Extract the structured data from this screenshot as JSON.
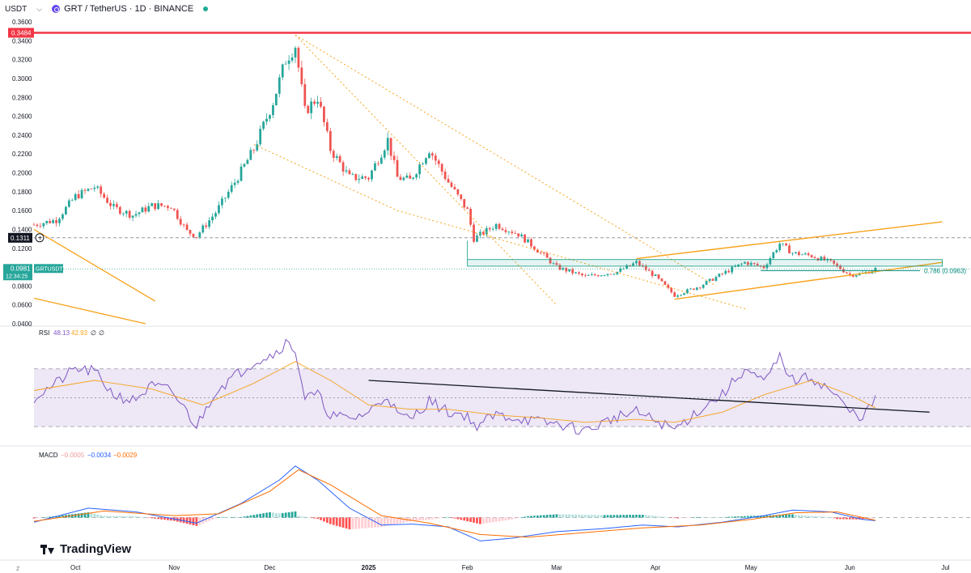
{
  "header": {
    "unit": "USDT",
    "symbol_text": "GRT / TetherUS · 1D · BINANCE"
  },
  "branding": {
    "text": "TradingView"
  },
  "corner_label": "Z",
  "chart_data": [
    {
      "type": "candlestick",
      "name": "GRTUSDT",
      "y_ticks": [
        "0.0400",
        "0.0600",
        "0.0800",
        "0.1000",
        "0.1200",
        "0.1400",
        "0.1600",
        "0.1800",
        "0.2000",
        "0.2200",
        "0.2400",
        "0.2600",
        "0.2800",
        "0.3000",
        "0.3200",
        "0.3400",
        "0.3600"
      ],
      "ylim": [
        0.04,
        0.36
      ],
      "x_ticks": [
        "Oct",
        "Nov",
        "Dec",
        "2025",
        "Feb",
        "Mar",
        "Apr",
        "May",
        "Jun",
        "Jul"
      ],
      "x_tick_dates": [
        "2024-10-01",
        "2024-11-01",
        "2024-12-01",
        "2025-01-01",
        "2025-02-01",
        "2025-03-01",
        "2025-04-01",
        "2025-05-01",
        "2025-06-01",
        "2025-07-01"
      ],
      "x_range": [
        "2024-09-18",
        "2025-07-09"
      ],
      "current_price": "0.0981",
      "current_price_label": "GRTUSDT",
      "countdown": "12:34:25",
      "price_line_value": 0.0981,
      "resistance_value": 0.3484,
      "resistance_label": "0.3484",
      "dashed_level_value": 0.1311,
      "dashed_level_label": "0.1311",
      "fib_label": "0.786 (0.0963)",
      "fib_value": 0.0963,
      "colors": {
        "up": "#26a69a",
        "down": "#ef5350",
        "resistance": "#f23645",
        "trend": "#f7a21b",
        "zone": "#089981"
      },
      "close_points": [
        [
          "2024-09-18",
          0.145
        ],
        [
          "2024-09-25",
          0.15
        ],
        [
          "2024-10-01",
          0.175
        ],
        [
          "2024-10-07",
          0.185
        ],
        [
          "2024-10-13",
          0.163
        ],
        [
          "2024-10-19",
          0.155
        ],
        [
          "2024-10-25",
          0.165
        ],
        [
          "2024-10-31",
          0.165
        ],
        [
          "2024-11-05",
          0.138
        ],
        [
          "2024-11-08",
          0.133
        ],
        [
          "2024-11-14",
          0.158
        ],
        [
          "2024-11-20",
          0.19
        ],
        [
          "2024-11-26",
          0.225
        ],
        [
          "2024-12-02",
          0.275
        ],
        [
          "2024-12-06",
          0.32
        ],
        [
          "2024-12-09",
          0.335
        ],
        [
          "2024-12-12",
          0.265
        ],
        [
          "2024-12-16",
          0.28
        ],
        [
          "2024-12-20",
          0.225
        ],
        [
          "2024-12-26",
          0.195
        ],
        [
          "2025-01-01",
          0.195
        ],
        [
          "2025-01-07",
          0.235
        ],
        [
          "2025-01-10",
          0.195
        ],
        [
          "2025-01-14",
          0.192
        ],
        [
          "2025-01-20",
          0.225
        ],
        [
          "2025-01-26",
          0.19
        ],
        [
          "2025-02-01",
          0.16
        ],
        [
          "2025-02-03",
          0.13
        ],
        [
          "2025-02-10",
          0.145
        ],
        [
          "2025-02-17",
          0.135
        ],
        [
          "2025-02-24",
          0.115
        ],
        [
          "2025-03-01",
          0.1
        ],
        [
          "2025-03-10",
          0.09
        ],
        [
          "2025-03-20",
          0.095
        ],
        [
          "2025-03-26",
          0.105
        ],
        [
          "2025-04-01",
          0.09
        ],
        [
          "2025-04-07",
          0.07
        ],
        [
          "2025-04-15",
          0.08
        ],
        [
          "2025-04-22",
          0.093
        ],
        [
          "2025-04-29",
          0.105
        ],
        [
          "2025-05-05",
          0.1
        ],
        [
          "2025-05-10",
          0.125
        ],
        [
          "2025-05-14",
          0.115
        ],
        [
          "2025-05-20",
          0.112
        ],
        [
          "2025-05-26",
          0.105
        ],
        [
          "2025-06-01",
          0.092
        ],
        [
          "2025-06-05",
          0.093
        ],
        [
          "2025-06-09",
          0.098
        ]
      ]
    },
    {
      "type": "line",
      "name": "RSI",
      "legend_label": "RSI",
      "legend_values": [
        "48.13",
        "42.93",
        "∅",
        "∅"
      ],
      "levels": [
        70,
        50,
        30
      ],
      "ylim": [
        20,
        90
      ],
      "colors": {
        "rsi": "#7e57c2",
        "ma": "#f7a21b",
        "band": "#ede7f6"
      },
      "rsi_points": [
        [
          "2024-09-18",
          50
        ],
        [
          "2024-09-25",
          60
        ],
        [
          "2024-10-01",
          70
        ],
        [
          "2024-10-07",
          68
        ],
        [
          "2024-10-13",
          52
        ],
        [
          "2024-10-19",
          48
        ],
        [
          "2024-10-25",
          58
        ],
        [
          "2024-10-31",
          55
        ],
        [
          "2024-11-05",
          40
        ],
        [
          "2024-11-08",
          30
        ],
        [
          "2024-11-14",
          55
        ],
        [
          "2024-11-20",
          65
        ],
        [
          "2024-11-26",
          75
        ],
        [
          "2024-12-02",
          80
        ],
        [
          "2024-12-06",
          88
        ],
        [
          "2024-12-09",
          83
        ],
        [
          "2024-12-12",
          50
        ],
        [
          "2024-12-16",
          52
        ],
        [
          "2024-12-20",
          38
        ],
        [
          "2024-12-26",
          35
        ],
        [
          "2025-01-01",
          40
        ],
        [
          "2025-01-07",
          52
        ],
        [
          "2025-01-10",
          38
        ],
        [
          "2025-01-14",
          35
        ],
        [
          "2025-01-20",
          48
        ],
        [
          "2025-01-26",
          40
        ],
        [
          "2025-02-01",
          38
        ],
        [
          "2025-02-03",
          30
        ],
        [
          "2025-02-10",
          38
        ],
        [
          "2025-02-17",
          36
        ],
        [
          "2025-02-24",
          33
        ],
        [
          "2025-03-01",
          32
        ],
        [
          "2025-03-10",
          27
        ],
        [
          "2025-03-20",
          37
        ],
        [
          "2025-03-26",
          40
        ],
        [
          "2025-04-01",
          34
        ],
        [
          "2025-04-07",
          28
        ],
        [
          "2025-04-15",
          42
        ],
        [
          "2025-04-22",
          52
        ],
        [
          "2025-04-29",
          70
        ],
        [
          "2025-05-05",
          60
        ],
        [
          "2025-05-10",
          78
        ],
        [
          "2025-05-14",
          62
        ],
        [
          "2025-05-20",
          64
        ],
        [
          "2025-05-26",
          55
        ],
        [
          "2025-06-01",
          40
        ],
        [
          "2025-06-05",
          37
        ],
        [
          "2025-06-09",
          48
        ]
      ],
      "ma_points": [
        [
          "2024-09-18",
          55
        ],
        [
          "2024-10-07",
          62
        ],
        [
          "2024-10-25",
          56
        ],
        [
          "2024-11-10",
          45
        ],
        [
          "2024-11-26",
          60
        ],
        [
          "2024-12-09",
          75
        ],
        [
          "2024-12-20",
          62
        ],
        [
          "2025-01-01",
          45
        ],
        [
          "2025-01-14",
          42
        ],
        [
          "2025-01-26",
          42
        ],
        [
          "2025-02-10",
          38
        ],
        [
          "2025-02-24",
          36
        ],
        [
          "2025-03-10",
          33
        ],
        [
          "2025-03-26",
          35
        ],
        [
          "2025-04-07",
          33
        ],
        [
          "2025-04-22",
          40
        ],
        [
          "2025-05-05",
          52
        ],
        [
          "2025-05-20",
          62
        ],
        [
          "2025-06-01",
          52
        ],
        [
          "2025-06-09",
          43
        ]
      ],
      "trendline": [
        [
          "2025-01-01",
          62
        ],
        [
          "2025-06-26",
          40
        ]
      ]
    },
    {
      "type": "bar",
      "name": "MACD",
      "legend_label": "MACD",
      "legend_values": [
        "−0.0005",
        "−0.0034",
        "−0.0029"
      ],
      "ylim": [
        -0.035,
        0.06
      ],
      "colors": {
        "macd": "#2962ff",
        "signal": "#ff6d00",
        "hist_up_strong": "#26a69a",
        "hist_up_weak": "#b2dfdb",
        "hist_down_strong": "#ff5252",
        "hist_down_weak": "#ffcdd2"
      },
      "macd_points": [
        [
          "2024-09-18",
          -0.005
        ],
        [
          "2024-10-05",
          0.01
        ],
        [
          "2024-10-20",
          0.006
        ],
        [
          "2024-11-08",
          -0.006
        ],
        [
          "2024-11-22",
          0.015
        ],
        [
          "2024-12-04",
          0.04
        ],
        [
          "2024-12-09",
          0.055
        ],
        [
          "2024-12-16",
          0.04
        ],
        [
          "2024-12-26",
          0.01
        ],
        [
          "2025-01-05",
          -0.008
        ],
        [
          "2025-01-15",
          -0.007
        ],
        [
          "2025-01-26",
          -0.01
        ],
        [
          "2025-02-05",
          -0.025
        ],
        [
          "2025-02-15",
          -0.022
        ],
        [
          "2025-03-01",
          -0.015
        ],
        [
          "2025-03-15",
          -0.012
        ],
        [
          "2025-03-28",
          -0.008
        ],
        [
          "2025-04-08",
          -0.01
        ],
        [
          "2025-04-22",
          -0.005
        ],
        [
          "2025-05-05",
          0.002
        ],
        [
          "2025-05-14",
          0.008
        ],
        [
          "2025-05-26",
          0.006
        ],
        [
          "2025-06-05",
          -0.002
        ],
        [
          "2025-06-09",
          -0.0034
        ]
      ],
      "signal_points": [
        [
          "2024-09-18",
          -0.004
        ],
        [
          "2024-10-10",
          0.007
        ],
        [
          "2024-11-01",
          0.002
        ],
        [
          "2024-11-15",
          0.004
        ],
        [
          "2024-12-01",
          0.028
        ],
        [
          "2024-12-10",
          0.051
        ],
        [
          "2024-12-20",
          0.035
        ],
        [
          "2025-01-05",
          0.002
        ],
        [
          "2025-01-20",
          -0.006
        ],
        [
          "2025-02-05",
          -0.018
        ],
        [
          "2025-02-20",
          -0.021
        ],
        [
          "2025-03-10",
          -0.016
        ],
        [
          "2025-03-28",
          -0.011
        ],
        [
          "2025-04-15",
          -0.008
        ],
        [
          "2025-05-01",
          -0.002
        ],
        [
          "2025-05-15",
          0.005
        ],
        [
          "2025-05-28",
          0.006
        ],
        [
          "2025-06-09",
          -0.0029
        ]
      ]
    }
  ]
}
